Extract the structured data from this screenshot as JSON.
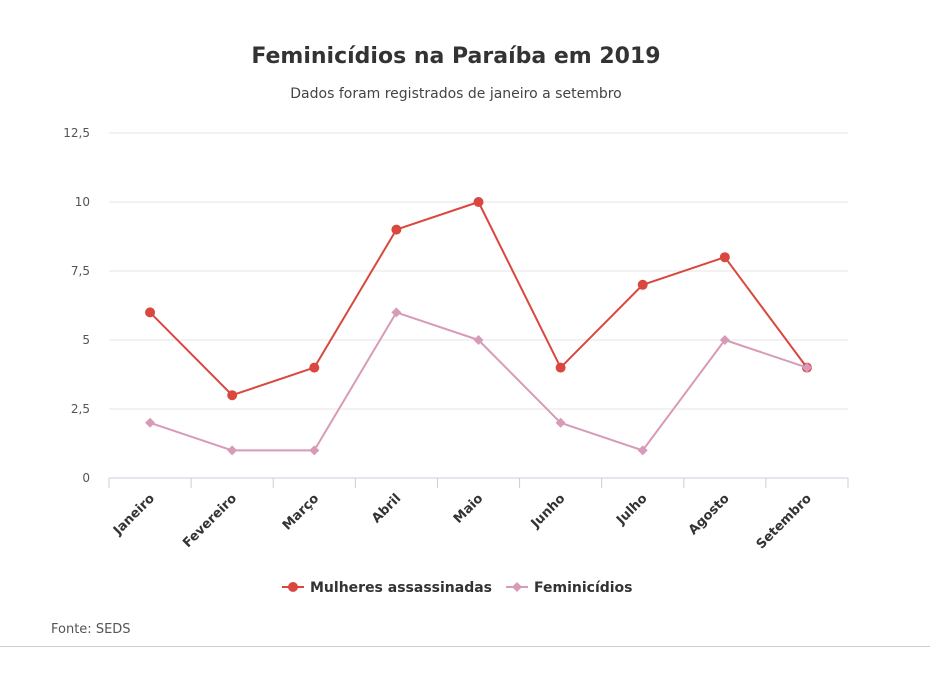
{
  "chart_data": {
    "type": "line",
    "title": "Feminicídios na Paraíba em 2019",
    "subtitle": "Dados foram registrados de janeiro a setembro",
    "categories": [
      "Janeiro",
      "Fevereiro",
      "Março",
      "Abril",
      "Maio",
      "Junho",
      "Julho",
      "Agosto",
      "Setembro"
    ],
    "series": [
      {
        "name": "Mulheres assassinadas",
        "values": [
          6,
          3,
          4,
          9,
          10,
          4,
          7,
          8,
          4
        ],
        "color": "#d9473f",
        "marker": "circle"
      },
      {
        "name": "Feminicídios",
        "values": [
          2,
          1,
          1,
          6,
          5,
          2,
          1,
          5,
          4
        ],
        "color": "#d79bb8",
        "marker": "diamond"
      }
    ],
    "yticks": [
      0,
      2.5,
      5,
      7.5,
      10,
      12.5
    ],
    "ytick_labels": [
      "0",
      "2,5",
      "5",
      "7,5",
      "10",
      "12,5"
    ],
    "ylim": [
      0,
      12.5
    ],
    "xlabel": "",
    "ylabel": "",
    "grid": true,
    "legend": "bottom-center"
  },
  "source": "Fonte: SEDS"
}
